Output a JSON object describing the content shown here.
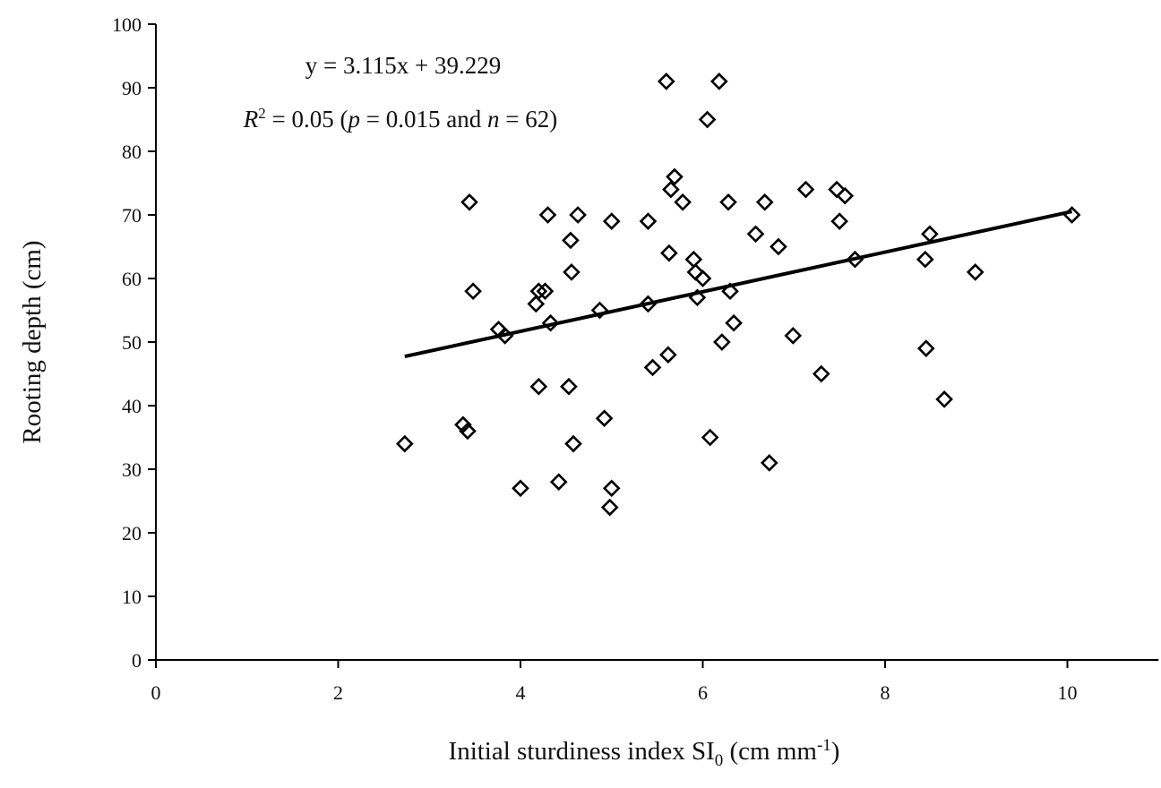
{
  "chart_data": {
    "type": "scatter",
    "xlabel": "Initial sturdiness index SI",
    "xlabel_sub": "0",
    "xlabel_unit": " (cm mm",
    "xlabel_sup": "-1",
    "xlabel_close": ")",
    "ylabel": "Rooting depth (cm)",
    "xlim": [
      0,
      11
    ],
    "ylim": [
      0,
      100
    ],
    "xticks": [
      0,
      2,
      4,
      6,
      8,
      10
    ],
    "yticks": [
      0,
      10,
      20,
      30,
      40,
      50,
      60,
      70,
      80,
      90,
      100
    ],
    "grid": false,
    "marker": "open-diamond",
    "color": "#000000",
    "annotation": {
      "equation": "y = 3.115x + 39.229",
      "r2_label": "R",
      "r2_sup": "2",
      "r2_text": " = 0.05 (",
      "p_label": "p",
      "p_text": " = 0.015 and ",
      "n_label": "n",
      "n_text": " = 62)"
    },
    "trendline": {
      "slope": 3.115,
      "intercept": 39.229,
      "x_range": [
        2.73,
        10.05
      ]
    },
    "points": [
      [
        2.73,
        34
      ],
      [
        3.37,
        37
      ],
      [
        3.42,
        36
      ],
      [
        3.44,
        72
      ],
      [
        3.48,
        58
      ],
      [
        3.76,
        52
      ],
      [
        3.83,
        51
      ],
      [
        4.0,
        27
      ],
      [
        4.17,
        56
      ],
      [
        4.2,
        58
      ],
      [
        4.2,
        43
      ],
      [
        4.27,
        58
      ],
      [
        4.3,
        70
      ],
      [
        4.33,
        53
      ],
      [
        4.42,
        28
      ],
      [
        4.53,
        43
      ],
      [
        4.55,
        66
      ],
      [
        4.56,
        61
      ],
      [
        4.58,
        34
      ],
      [
        4.63,
        70
      ],
      [
        4.87,
        55
      ],
      [
        4.92,
        38
      ],
      [
        4.98,
        24
      ],
      [
        5.0,
        27
      ],
      [
        5.0,
        69
      ],
      [
        5.4,
        69
      ],
      [
        5.4,
        56
      ],
      [
        5.45,
        46
      ],
      [
        5.6,
        91
      ],
      [
        5.62,
        48
      ],
      [
        5.63,
        64
      ],
      [
        5.65,
        74
      ],
      [
        5.69,
        76
      ],
      [
        5.78,
        72
      ],
      [
        5.9,
        63
      ],
      [
        5.92,
        61
      ],
      [
        5.94,
        57
      ],
      [
        6.0,
        60
      ],
      [
        6.05,
        85
      ],
      [
        6.08,
        35
      ],
      [
        6.18,
        91
      ],
      [
        6.21,
        50
      ],
      [
        6.28,
        72
      ],
      [
        6.3,
        58
      ],
      [
        6.34,
        53
      ],
      [
        6.58,
        67
      ],
      [
        6.68,
        72
      ],
      [
        6.73,
        31
      ],
      [
        6.83,
        65
      ],
      [
        6.99,
        51
      ],
      [
        7.13,
        74
      ],
      [
        7.3,
        45
      ],
      [
        7.47,
        74
      ],
      [
        7.5,
        69
      ],
      [
        7.56,
        73
      ],
      [
        7.67,
        63
      ],
      [
        8.44,
        63
      ],
      [
        8.45,
        49
      ],
      [
        8.49,
        67
      ],
      [
        8.65,
        41
      ],
      [
        8.99,
        61
      ],
      [
        10.05,
        70
      ]
    ]
  }
}
